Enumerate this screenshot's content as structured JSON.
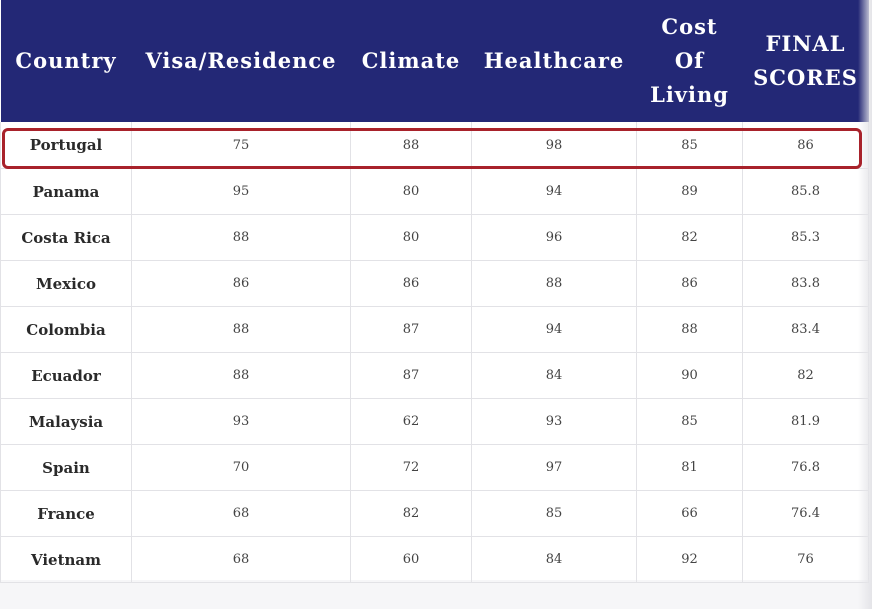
{
  "table": {
    "headers": [
      "Country",
      "Visa/Residence",
      "Climate",
      "Healthcare",
      "Cost\nOf\nLiving",
      "FINAL\nSCORES"
    ],
    "rows": [
      [
        "Portugal",
        "75",
        "88",
        "98",
        "85",
        "86"
      ],
      [
        "Panama",
        "95",
        "80",
        "94",
        "89",
        "85.8"
      ],
      [
        "Costa Rica",
        "88",
        "80",
        "96",
        "82",
        "85.3"
      ],
      [
        "Mexico",
        "86",
        "86",
        "88",
        "86",
        "83.8"
      ],
      [
        "Colombia",
        "88",
        "87",
        "94",
        "88",
        "83.4"
      ],
      [
        "Ecuador",
        "88",
        "87",
        "84",
        "90",
        "82"
      ],
      [
        "Malaysia",
        "93",
        "62",
        "93",
        "85",
        "81.9"
      ],
      [
        "Spain",
        "70",
        "72",
        "97",
        "81",
        "76.8"
      ],
      [
        "France",
        "68",
        "82",
        "85",
        "66",
        "76.4"
      ],
      [
        "Vietnam",
        "68",
        "60",
        "84",
        "92",
        "76"
      ]
    ]
  },
  "colors": {
    "header_bg": "#232876",
    "header_text": "#ffffff",
    "highlight_border": "#a8222b",
    "cell_text": "#444444",
    "grid_line": "#e2e2e6"
  }
}
